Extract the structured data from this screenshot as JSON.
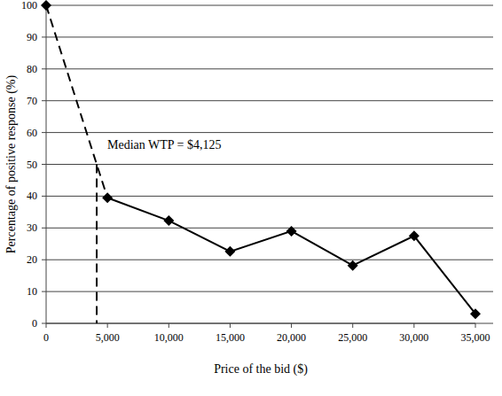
{
  "chart_data": {
    "type": "line",
    "x_label": "Price of the bid ($)",
    "y_label": "Percentage of positive response (%)",
    "x": [
      0,
      5000,
      10000,
      15000,
      20000,
      25000,
      30000,
      35000
    ],
    "values": [
      100,
      39.5,
      32.3,
      22.6,
      29,
      18.2,
      27.5,
      3
    ],
    "color": "#000000",
    "marker": "diamond",
    "line_style": "solid",
    "median": {
      "x": 4125,
      "y": 50,
      "label": "Median WTP = $4,125"
    },
    "xlim": [
      0,
      35000
    ],
    "xticks": [
      0,
      {
        "value": 5000,
        "label": "5,000"
      },
      {
        "value": 10000,
        "label": "10,000"
      },
      {
        "value": 15000,
        "label": "15,000"
      },
      {
        "value": 20000,
        "label": "20,000"
      },
      {
        "value": 25000,
        "label": "25,000"
      },
      {
        "value": 30000,
        "label": "30,000"
      },
      {
        "value": 35000,
        "label": "35,000"
      }
    ],
    "ylim": [
      0,
      100
    ],
    "yticks": [
      0,
      10,
      20,
      30,
      40,
      50,
      60,
      70,
      80,
      90,
      100
    ],
    "grid": true
  }
}
